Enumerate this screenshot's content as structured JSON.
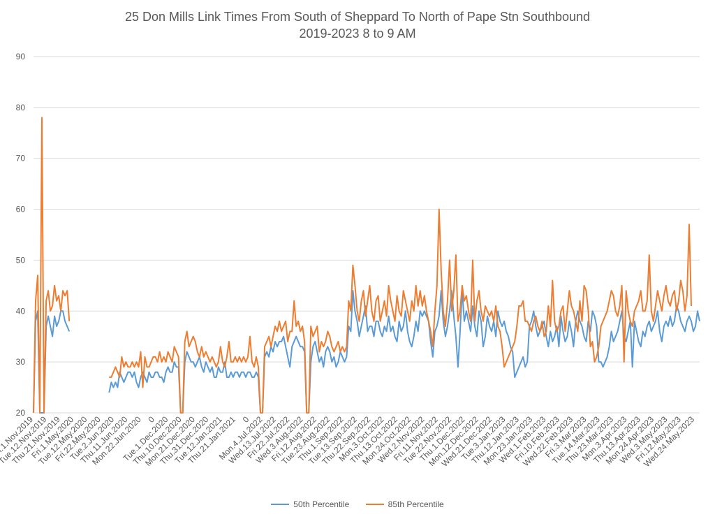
{
  "chart_data": {
    "type": "line",
    "title": "25 Don Mills Link Times From South of Sheppard To North of Pape Stn Southbound",
    "subtitle": "2019-2023 8 to 9 AM",
    "xlabel": "",
    "ylabel": "",
    "ylim": [
      20,
      90
    ],
    "yticks": [
      20,
      30,
      40,
      50,
      60,
      70,
      80,
      90
    ],
    "grid": true,
    "legend": "bottom",
    "x_tick_labels": [
      "Fri.1.Nov.2019",
      "Tue.12.Nov.2019",
      "Thu.21.Nov.2019",
      "Fri.1.May.2020",
      "Tue.12.May.2020",
      "Fri.22.May.2020",
      "Tue.2.Jun.2020",
      "Thu.11.Jun.2020",
      "Mon.22.Jun.2020",
      "0",
      "Tue.1.Dec.2020",
      "Thu.10.Dec.2020",
      "Mon.21.Dec.2020",
      "Thu.31.Dec.2020",
      "Tue.12.Jan.2021",
      "Thu.21.Jan.2021",
      "0",
      "Mon.4.Jul.2022",
      "Wed.13.Jul.2022",
      "Fri.22.Jul.2022",
      "Wed.3.Aug.2022",
      "Fri.12.Aug.2022",
      "Tue.23.Aug.2022",
      "Thu.1.Sep.2022",
      "Tue.13.Sep.2022",
      "Thu.22.Sep.2022",
      "Mon.3.Oct.2022",
      "Thu.13.Oct.2022",
      "Mon.24.Oct.2022",
      "Wed.2.Nov.2022",
      "Fri.11.Nov.2022",
      "Tue.22.Nov.2022",
      "Thu.1.Dec.2022",
      "Mon.12.Dec.2022",
      "Wed.21.Dec.2022",
      "Tue.3.Jan.2023",
      "Thu.12.Jan.2023",
      "Mon.23.Jan.2023",
      "Wed.1.Feb.2023",
      "Fri.10.Feb.2023",
      "Wed.22.Feb.2023",
      "Fri.3.Mar.2023",
      "Tue.14.Mar.2023",
      "Thu.23.Mar.2023",
      "Mon.3.Apr.2023",
      "Thu.13.Apr.2023",
      "Mon.24.Apr.2023",
      "Wed.3.May.2023",
      "Fri.12.May.2023",
      "Wed.24.May.2023"
    ],
    "series": [
      {
        "name": "50th Percentile",
        "color": "#5B9BD5",
        "values": [
          20,
          38,
          40,
          20,
          20,
          20,
          37,
          39,
          37,
          35,
          39,
          37,
          38,
          40,
          40,
          38,
          37,
          36,
          null,
          null,
          null,
          null,
          null,
          null,
          null,
          null,
          null,
          null,
          null,
          null,
          null,
          null,
          null,
          null,
          null,
          null,
          24,
          26,
          25,
          26,
          25,
          28,
          27,
          26,
          27,
          28,
          28,
          27,
          28,
          26,
          25,
          27,
          28,
          27,
          26,
          28,
          27,
          27,
          28,
          28,
          27,
          27,
          26,
          28,
          29,
          28,
          28,
          30,
          29,
          29,
          20,
          20,
          30,
          32,
          31,
          30,
          30,
          29,
          30,
          31,
          29,
          28,
          30,
          29,
          28,
          29,
          27,
          27,
          29,
          28,
          28,
          30,
          27,
          27,
          28,
          27,
          28,
          28,
          27,
          28,
          28,
          27,
          28,
          28,
          27,
          27,
          28,
          27,
          20,
          20,
          31,
          32,
          31,
          33,
          32,
          34,
          33,
          34,
          34,
          35,
          33,
          31,
          29,
          33,
          34,
          35,
          34,
          33,
          33,
          32,
          20,
          20,
          30,
          33,
          34,
          32,
          30,
          31,
          29,
          32,
          33,
          32,
          30,
          31,
          29,
          30,
          32,
          31,
          30,
          31,
          37,
          36,
          44,
          40,
          38,
          35,
          37,
          39,
          41,
          36,
          37,
          37,
          35,
          38,
          38,
          36,
          35,
          37,
          36,
          39,
          36,
          37,
          35,
          34,
          38,
          36,
          37,
          40,
          36,
          34,
          33,
          35,
          38,
          36,
          40,
          39,
          40,
          39,
          38,
          34,
          31,
          36,
          37,
          39,
          44,
          38,
          35,
          37,
          40,
          44,
          39,
          35,
          29,
          36,
          44,
          38,
          40,
          38,
          36,
          41,
          37,
          35,
          40,
          38,
          33,
          35,
          39,
          37,
          36,
          38,
          35,
          40,
          38,
          37,
          38,
          36,
          35,
          33,
          32,
          27,
          28,
          29,
          30,
          31,
          29,
          30,
          37,
          38,
          40,
          37,
          35,
          36,
          37,
          38,
          35,
          33,
          36,
          34,
          35,
          37,
          33,
          39,
          36,
          34,
          35,
          38,
          36,
          33,
          38,
          40,
          38,
          37,
          35,
          34,
          38,
          36,
          40,
          39,
          37,
          30,
          30,
          29,
          30,
          31,
          33,
          36,
          34,
          35,
          36,
          38,
          40,
          35,
          34,
          36,
          38,
          29,
          38,
          36,
          34,
          33,
          36,
          35,
          37,
          38,
          36,
          37,
          38,
          40,
          36,
          34,
          37,
          38,
          37,
          39,
          37,
          38,
          41,
          40,
          38,
          37,
          36,
          38,
          39,
          38,
          36,
          37,
          40,
          38
        ]
      },
      {
        "name": "85th Percentile",
        "color": "#ED7D31",
        "values": [
          20,
          42,
          47,
          20,
          78,
          20,
          42,
          44,
          40,
          41,
          45,
          42,
          43,
          40,
          44,
          43,
          44,
          38,
          null,
          null,
          null,
          null,
          null,
          null,
          null,
          null,
          null,
          null,
          null,
          null,
          null,
          null,
          null,
          null,
          null,
          null,
          27,
          27,
          28,
          29,
          28,
          27,
          31,
          29,
          30,
          29,
          29,
          30,
          29,
          30,
          29,
          32,
          25,
          31,
          29,
          29,
          30,
          31,
          31,
          30,
          32,
          30,
          31,
          30,
          32,
          31,
          30,
          33,
          32,
          31,
          20,
          20,
          34,
          36,
          33,
          34,
          35,
          34,
          32,
          31,
          33,
          31,
          32,
          31,
          30,
          31,
          30,
          29,
          30,
          33,
          30,
          29,
          31,
          34,
          30,
          30,
          31,
          30,
          31,
          30,
          31,
          30,
          31,
          35,
          30,
          29,
          31,
          29,
          20,
          20,
          33,
          34,
          35,
          33,
          35,
          37,
          36,
          38,
          36,
          37,
          38,
          34,
          36,
          36,
          42,
          37,
          38,
          36,
          37,
          34,
          20,
          20,
          37,
          35,
          36,
          37,
          32,
          34,
          33,
          34,
          36,
          35,
          33,
          32,
          33,
          34,
          32,
          33,
          32,
          33,
          42,
          40,
          49,
          45,
          40,
          38,
          42,
          44,
          39,
          42,
          45,
          40,
          38,
          42,
          43,
          38,
          40,
          42,
          39,
          45,
          42,
          40,
          38,
          43,
          40,
          39,
          44,
          42,
          40,
          38,
          42,
          40,
          45,
          41,
          44,
          41,
          43,
          40,
          38,
          36,
          33,
          40,
          45,
          60,
          48,
          40,
          37,
          42,
          50,
          40,
          44,
          51,
          38,
          40,
          45,
          42,
          43,
          40,
          38,
          50,
          38,
          42,
          44,
          40,
          38,
          41,
          40,
          39,
          40,
          38,
          41,
          37,
          36,
          33,
          29,
          30,
          31,
          32,
          33,
          34,
          37,
          41,
          41,
          42,
          38,
          38,
          37,
          36,
          38,
          39,
          37,
          36,
          38,
          35,
          36,
          41,
          37,
          46,
          38,
          36,
          37,
          40,
          41,
          36,
          40,
          44,
          41,
          40,
          38,
          36,
          42,
          38,
          45,
          44,
          40,
          33,
          34,
          30,
          31,
          33,
          37,
          38,
          39,
          40,
          42,
          44,
          43,
          40,
          39,
          41,
          45,
          30,
          44,
          40,
          38,
          37,
          40,
          41,
          42,
          44,
          40,
          40,
          42,
          51,
          40,
          38,
          41,
          44,
          42,
          40,
          43,
          45,
          42,
          41,
          43,
          44,
          40,
          42,
          46,
          44,
          40,
          43,
          57,
          41
        ]
      }
    ]
  }
}
